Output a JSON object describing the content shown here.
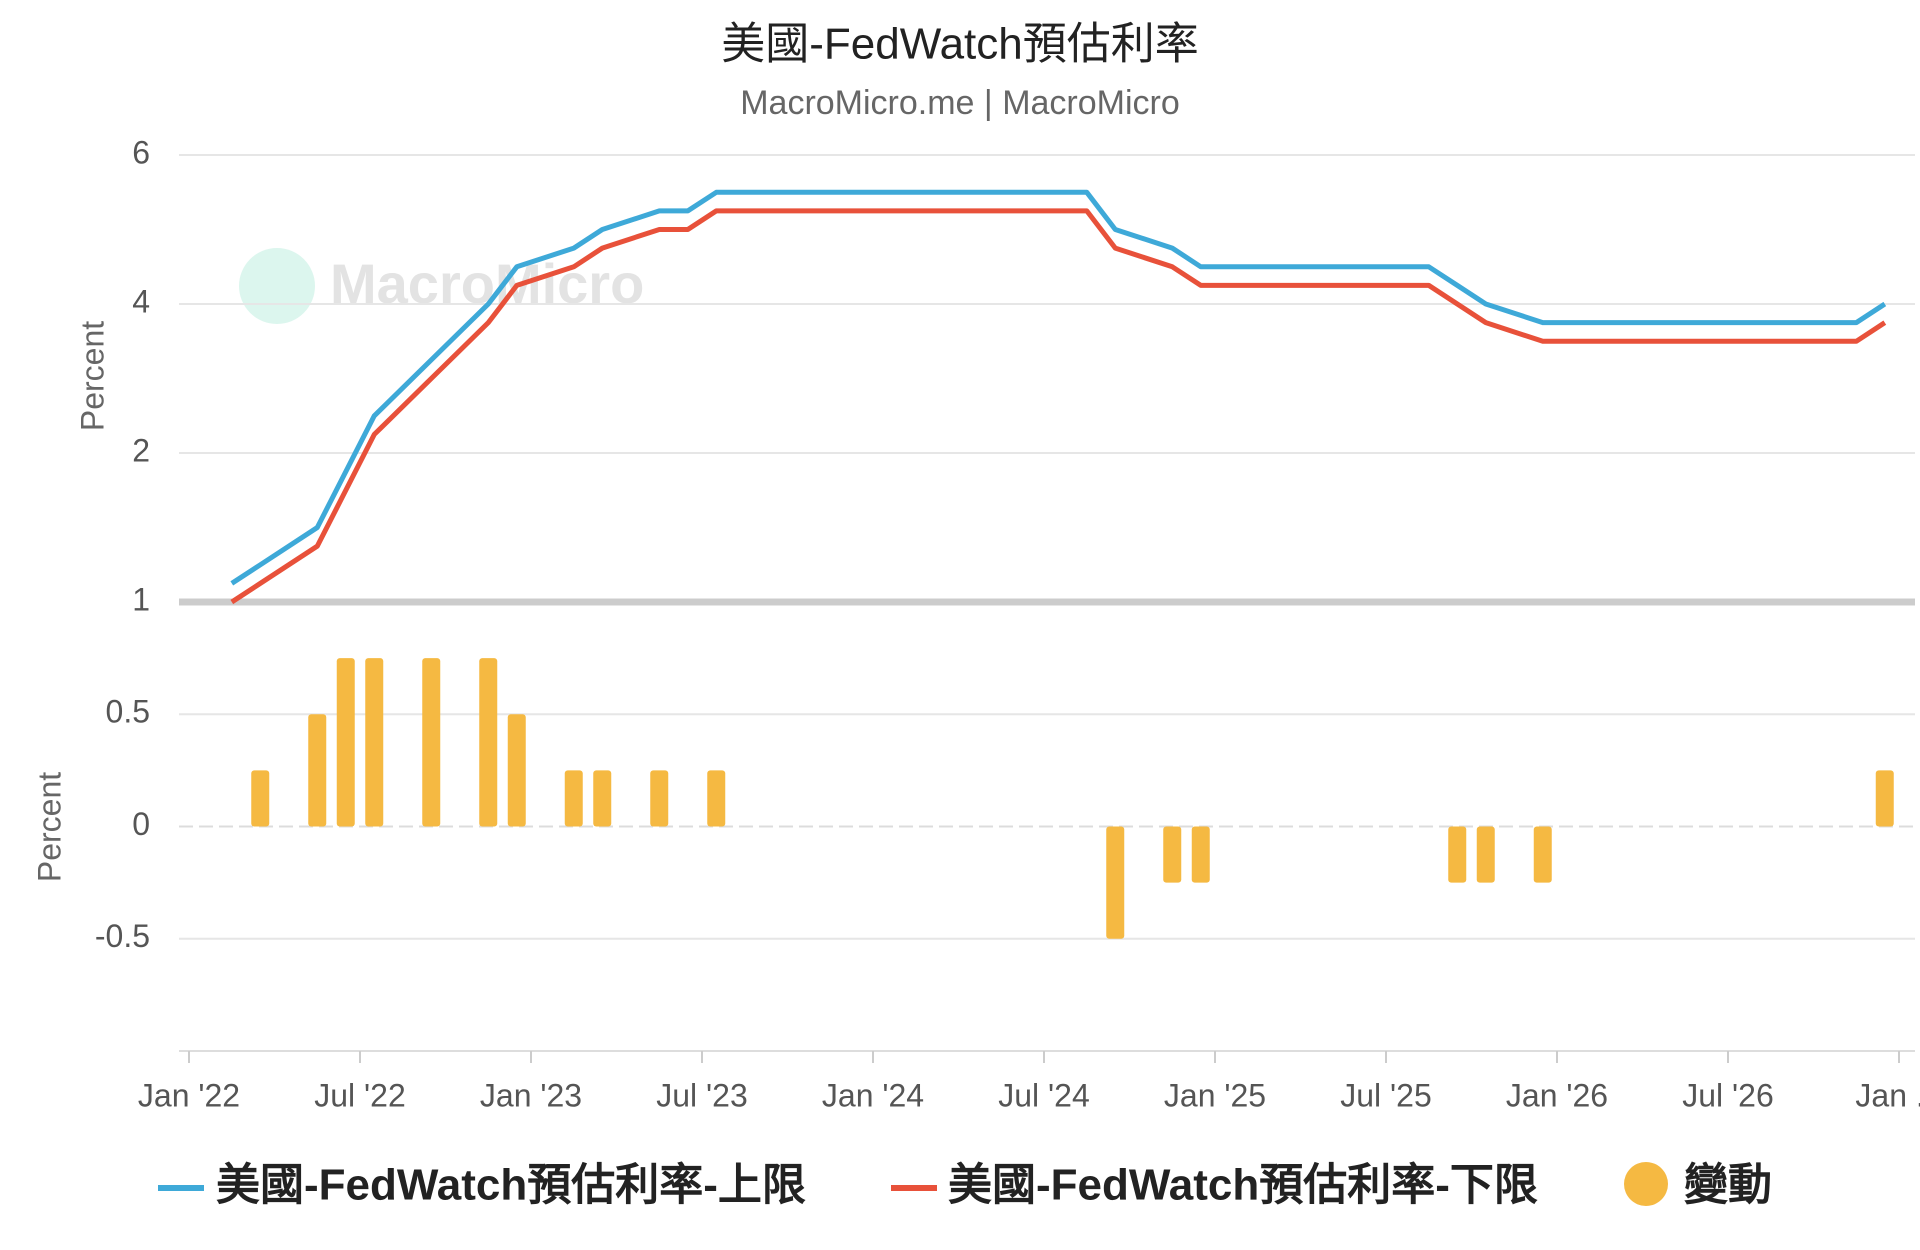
{
  "chart_data": [
    {
      "type": "line",
      "title": "美國-FedWatch預估利率",
      "subtitle": "MacroMicro.me | MacroMicro",
      "watermark": "MacroMicro",
      "ylabel": "Percent",
      "ylim": [
        0,
        6
      ],
      "yticks": [
        2,
        4,
        6
      ],
      "grid": true,
      "x": [
        "2022-02",
        "2022-03",
        "2022-05",
        "2022-06",
        "2022-07",
        "2022-09",
        "2022-11",
        "2022-12",
        "2023-02",
        "2023-03",
        "2023-05",
        "2023-06",
        "2023-07",
        "2024-08",
        "2024-09",
        "2024-11",
        "2024-12",
        "2025-08",
        "2025-09",
        "2025-10",
        "2025-12",
        "2026-11",
        "2026-12"
      ],
      "series": [
        {
          "name": "美國-FedWatch預估利率-上限",
          "color": "#3ea9d8",
          "values": [
            0.25,
            0.5,
            1.0,
            1.75,
            2.5,
            3.25,
            4.0,
            4.5,
            4.75,
            5.0,
            5.25,
            5.25,
            5.5,
            5.5,
            5.0,
            4.75,
            4.5,
            4.5,
            4.25,
            4.0,
            3.75,
            3.75,
            4.0
          ]
        },
        {
          "name": "美國-FedWatch預估利率-下限",
          "color": "#e8513a",
          "values": [
            0,
            0.25,
            0.75,
            1.5,
            2.25,
            3.0,
            3.75,
            4.25,
            4.5,
            4.75,
            5.0,
            5.0,
            5.25,
            5.25,
            4.75,
            4.5,
            4.25,
            4.25,
            4.0,
            3.75,
            3.5,
            3.5,
            3.75
          ]
        }
      ]
    },
    {
      "type": "bar",
      "ylabel": "Percent",
      "ylim": [
        -1,
        1
      ],
      "yticks": [
        -0.5,
        0,
        0.5,
        1
      ],
      "grid": true,
      "xlim": [
        "2022-01",
        "2027-01"
      ],
      "xticks": [
        {
          "value": "2022-01",
          "label": "Jan '22"
        },
        {
          "value": "2022-07",
          "label": "Jul '22"
        },
        {
          "value": "2023-01",
          "label": "Jan '23"
        },
        {
          "value": "2023-07",
          "label": "Jul '23"
        },
        {
          "value": "2024-01",
          "label": "Jan '24"
        },
        {
          "value": "2024-07",
          "label": "Jul '24"
        },
        {
          "value": "2025-01",
          "label": "Jan '25"
        },
        {
          "value": "2025-07",
          "label": "Jul '25"
        },
        {
          "value": "2026-01",
          "label": "Jan '26"
        },
        {
          "value": "2026-07",
          "label": "Jul '26"
        },
        {
          "value": "2027-01",
          "label": "Jan ..."
        }
      ],
      "x": [
        "2022-02",
        "2022-03",
        "2022-05",
        "2022-06",
        "2022-07",
        "2022-09",
        "2022-11",
        "2022-12",
        "2023-02",
        "2023-03",
        "2023-05",
        "2023-06",
        "2023-07",
        "2024-08",
        "2024-09",
        "2024-11",
        "2024-12",
        "2025-08",
        "2025-09",
        "2025-10",
        "2025-12",
        "2026-11",
        "2026-12"
      ],
      "series": [
        {
          "name": "變動",
          "color": "#f5b942",
          "values": [
            null,
            0.25,
            0.5,
            0.75,
            0.75,
            0.75,
            0.75,
            0.5,
            0.25,
            0.25,
            0.25,
            null,
            0.25,
            null,
            -0.5,
            -0.25,
            -0.25,
            null,
            -0.25,
            -0.25,
            -0.25,
            null,
            0.25
          ]
        }
      ]
    }
  ]
}
